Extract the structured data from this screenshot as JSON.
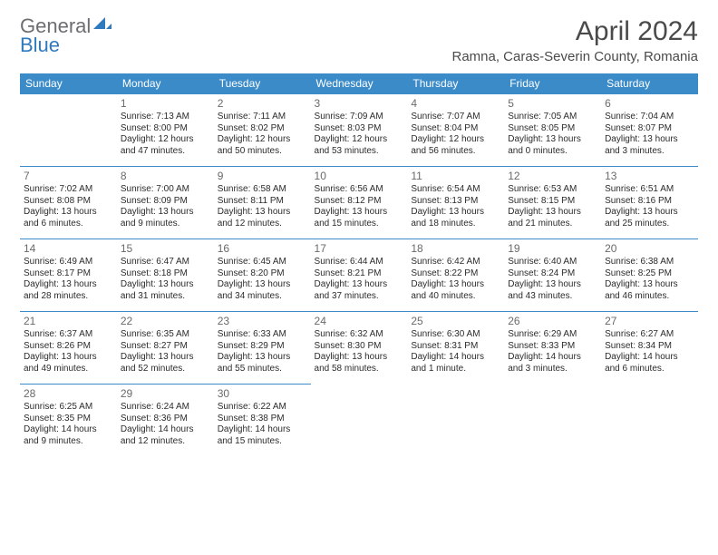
{
  "logo": {
    "word1": "General",
    "word2": "Blue",
    "mark_fill": "#2f79bf"
  },
  "title": "April 2024",
  "location": "Ramna, Caras-Severin County, Romania",
  "day_headers": [
    "Sunday",
    "Monday",
    "Tuesday",
    "Wednesday",
    "Thursday",
    "Friday",
    "Saturday"
  ],
  "colors": {
    "header_bg": "#3b8bc9",
    "header_text": "#ffffff",
    "cell_border": "#3b8bc9",
    "daynum": "#6a6a6a",
    "body_text": "#2b2b2b",
    "title_text": "#4a4a4a"
  },
  "weeks": [
    [
      null,
      {
        "n": "1",
        "sr": "Sunrise: 7:13 AM",
        "ss": "Sunset: 8:00 PM",
        "d1": "Daylight: 12 hours",
        "d2": "and 47 minutes."
      },
      {
        "n": "2",
        "sr": "Sunrise: 7:11 AM",
        "ss": "Sunset: 8:02 PM",
        "d1": "Daylight: 12 hours",
        "d2": "and 50 minutes."
      },
      {
        "n": "3",
        "sr": "Sunrise: 7:09 AM",
        "ss": "Sunset: 8:03 PM",
        "d1": "Daylight: 12 hours",
        "d2": "and 53 minutes."
      },
      {
        "n": "4",
        "sr": "Sunrise: 7:07 AM",
        "ss": "Sunset: 8:04 PM",
        "d1": "Daylight: 12 hours",
        "d2": "and 56 minutes."
      },
      {
        "n": "5",
        "sr": "Sunrise: 7:05 AM",
        "ss": "Sunset: 8:05 PM",
        "d1": "Daylight: 13 hours",
        "d2": "and 0 minutes."
      },
      {
        "n": "6",
        "sr": "Sunrise: 7:04 AM",
        "ss": "Sunset: 8:07 PM",
        "d1": "Daylight: 13 hours",
        "d2": "and 3 minutes."
      }
    ],
    [
      {
        "n": "7",
        "sr": "Sunrise: 7:02 AM",
        "ss": "Sunset: 8:08 PM",
        "d1": "Daylight: 13 hours",
        "d2": "and 6 minutes."
      },
      {
        "n": "8",
        "sr": "Sunrise: 7:00 AM",
        "ss": "Sunset: 8:09 PM",
        "d1": "Daylight: 13 hours",
        "d2": "and 9 minutes."
      },
      {
        "n": "9",
        "sr": "Sunrise: 6:58 AM",
        "ss": "Sunset: 8:11 PM",
        "d1": "Daylight: 13 hours",
        "d2": "and 12 minutes."
      },
      {
        "n": "10",
        "sr": "Sunrise: 6:56 AM",
        "ss": "Sunset: 8:12 PM",
        "d1": "Daylight: 13 hours",
        "d2": "and 15 minutes."
      },
      {
        "n": "11",
        "sr": "Sunrise: 6:54 AM",
        "ss": "Sunset: 8:13 PM",
        "d1": "Daylight: 13 hours",
        "d2": "and 18 minutes."
      },
      {
        "n": "12",
        "sr": "Sunrise: 6:53 AM",
        "ss": "Sunset: 8:15 PM",
        "d1": "Daylight: 13 hours",
        "d2": "and 21 minutes."
      },
      {
        "n": "13",
        "sr": "Sunrise: 6:51 AM",
        "ss": "Sunset: 8:16 PM",
        "d1": "Daylight: 13 hours",
        "d2": "and 25 minutes."
      }
    ],
    [
      {
        "n": "14",
        "sr": "Sunrise: 6:49 AM",
        "ss": "Sunset: 8:17 PM",
        "d1": "Daylight: 13 hours",
        "d2": "and 28 minutes."
      },
      {
        "n": "15",
        "sr": "Sunrise: 6:47 AM",
        "ss": "Sunset: 8:18 PM",
        "d1": "Daylight: 13 hours",
        "d2": "and 31 minutes."
      },
      {
        "n": "16",
        "sr": "Sunrise: 6:45 AM",
        "ss": "Sunset: 8:20 PM",
        "d1": "Daylight: 13 hours",
        "d2": "and 34 minutes."
      },
      {
        "n": "17",
        "sr": "Sunrise: 6:44 AM",
        "ss": "Sunset: 8:21 PM",
        "d1": "Daylight: 13 hours",
        "d2": "and 37 minutes."
      },
      {
        "n": "18",
        "sr": "Sunrise: 6:42 AM",
        "ss": "Sunset: 8:22 PM",
        "d1": "Daylight: 13 hours",
        "d2": "and 40 minutes."
      },
      {
        "n": "19",
        "sr": "Sunrise: 6:40 AM",
        "ss": "Sunset: 8:24 PM",
        "d1": "Daylight: 13 hours",
        "d2": "and 43 minutes."
      },
      {
        "n": "20",
        "sr": "Sunrise: 6:38 AM",
        "ss": "Sunset: 8:25 PM",
        "d1": "Daylight: 13 hours",
        "d2": "and 46 minutes."
      }
    ],
    [
      {
        "n": "21",
        "sr": "Sunrise: 6:37 AM",
        "ss": "Sunset: 8:26 PM",
        "d1": "Daylight: 13 hours",
        "d2": "and 49 minutes."
      },
      {
        "n": "22",
        "sr": "Sunrise: 6:35 AM",
        "ss": "Sunset: 8:27 PM",
        "d1": "Daylight: 13 hours",
        "d2": "and 52 minutes."
      },
      {
        "n": "23",
        "sr": "Sunrise: 6:33 AM",
        "ss": "Sunset: 8:29 PM",
        "d1": "Daylight: 13 hours",
        "d2": "and 55 minutes."
      },
      {
        "n": "24",
        "sr": "Sunrise: 6:32 AM",
        "ss": "Sunset: 8:30 PM",
        "d1": "Daylight: 13 hours",
        "d2": "and 58 minutes."
      },
      {
        "n": "25",
        "sr": "Sunrise: 6:30 AM",
        "ss": "Sunset: 8:31 PM",
        "d1": "Daylight: 14 hours",
        "d2": "and 1 minute."
      },
      {
        "n": "26",
        "sr": "Sunrise: 6:29 AM",
        "ss": "Sunset: 8:33 PM",
        "d1": "Daylight: 14 hours",
        "d2": "and 3 minutes."
      },
      {
        "n": "27",
        "sr": "Sunrise: 6:27 AM",
        "ss": "Sunset: 8:34 PM",
        "d1": "Daylight: 14 hours",
        "d2": "and 6 minutes."
      }
    ],
    [
      {
        "n": "28",
        "sr": "Sunrise: 6:25 AM",
        "ss": "Sunset: 8:35 PM",
        "d1": "Daylight: 14 hours",
        "d2": "and 9 minutes."
      },
      {
        "n": "29",
        "sr": "Sunrise: 6:24 AM",
        "ss": "Sunset: 8:36 PM",
        "d1": "Daylight: 14 hours",
        "d2": "and 12 minutes."
      },
      {
        "n": "30",
        "sr": "Sunrise: 6:22 AM",
        "ss": "Sunset: 8:38 PM",
        "d1": "Daylight: 14 hours",
        "d2": "and 15 minutes."
      },
      null,
      null,
      null,
      null
    ]
  ]
}
